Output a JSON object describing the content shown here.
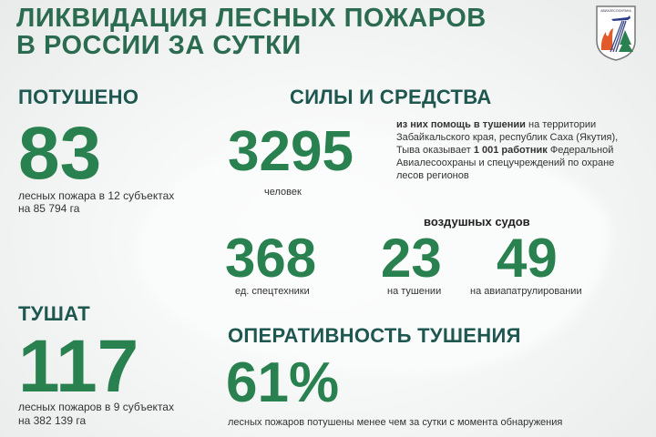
{
  "title": {
    "line1": "ЛИКВИДАЦИЯ ЛЕСНЫХ ПОЖАРОВ",
    "line2": "В РОССИИ ЗА СУТКИ"
  },
  "logo": {
    "text": "АВИАЛЕСООХРАНА"
  },
  "extinguished": {
    "heading": "ПОТУШЕНО",
    "value": "83",
    "line1": "лесных пожара в 12 субъектах",
    "line2": "на 85 794 га"
  },
  "burning": {
    "heading": "ТУШАТ",
    "value": "117",
    "line1": "лесных пожаров в 9 субъектах",
    "line2": "на 382 139 га"
  },
  "forces": {
    "heading": "СИЛЫ И СРЕДСТВА",
    "people_value": "3295",
    "people_label": "человек",
    "help_bold": "из них помощь в тушении",
    "help_text1": " на территории Забайкальского края, республик Саха (Якутия), Тыва оказывает ",
    "help_bold2": "1 001 работник",
    "help_text2": " Федеральной Авиалесоохраны и спецучреждений по охране лесов регионов",
    "aircraft_heading": "воздушных судов",
    "equipment_value": "368",
    "equipment_label": "ед. спецтехники",
    "firefighting_value": "23",
    "firefighting_label": "на тушении",
    "patrol_value": "49",
    "patrol_label": "на авиапатрулировании"
  },
  "efficiency": {
    "heading": "ОПЕРАТИВНОСТЬ ТУШЕНИЯ",
    "value": "61%",
    "label": "лесных пожаров потушены менее чем за сутки с момента обнаружения"
  },
  "colors": {
    "title": "#2b6b50",
    "heading": "#1e5650",
    "number": "#2a8150"
  }
}
